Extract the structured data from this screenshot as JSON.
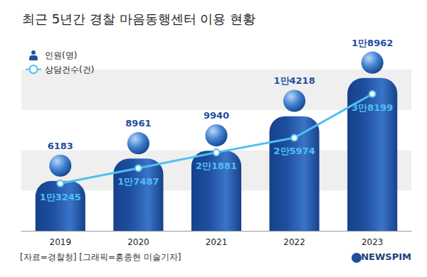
{
  "chart_data": {
    "type": "bar",
    "title": "최근 5년간 경찰 마음동행센터 이용 현황",
    "categories": [
      "2019",
      "2020",
      "2021",
      "2022",
      "2023"
    ],
    "series": [
      {
        "name": "인원(명)",
        "type": "bar",
        "color": "#1f4fa0",
        "values": [
          6183,
          8961,
          9940,
          14218,
          18962
        ],
        "value_labels": [
          "6183",
          "8961",
          "9940",
          "1만4218",
          "1만8962"
        ]
      },
      {
        "name": "상담건수(건)",
        "type": "line",
        "axis": "y2",
        "color": "#4fc0f0",
        "marker": "circle",
        "values": [
          13245,
          17487,
          21881,
          25974,
          38199
        ],
        "value_labels": [
          "1만3245",
          "1만7487",
          "2만1881",
          "2만5974",
          "3만8199"
        ]
      }
    ],
    "ylim": [
      0,
      20000
    ],
    "yticks": [
      0,
      5000,
      10000,
      15000,
      20000
    ],
    "y2lim": [
      0,
      45000
    ],
    "y2ticks": [
      0,
      15000,
      30000,
      45000
    ],
    "grid": true,
    "legend": "top-left",
    "data_labels": true,
    "tick_labels": "x",
    "annotations": [
      "[자료=경찰청] [그래픽=홍종현 미술기자]",
      "NEWSPIM"
    ]
  }
}
